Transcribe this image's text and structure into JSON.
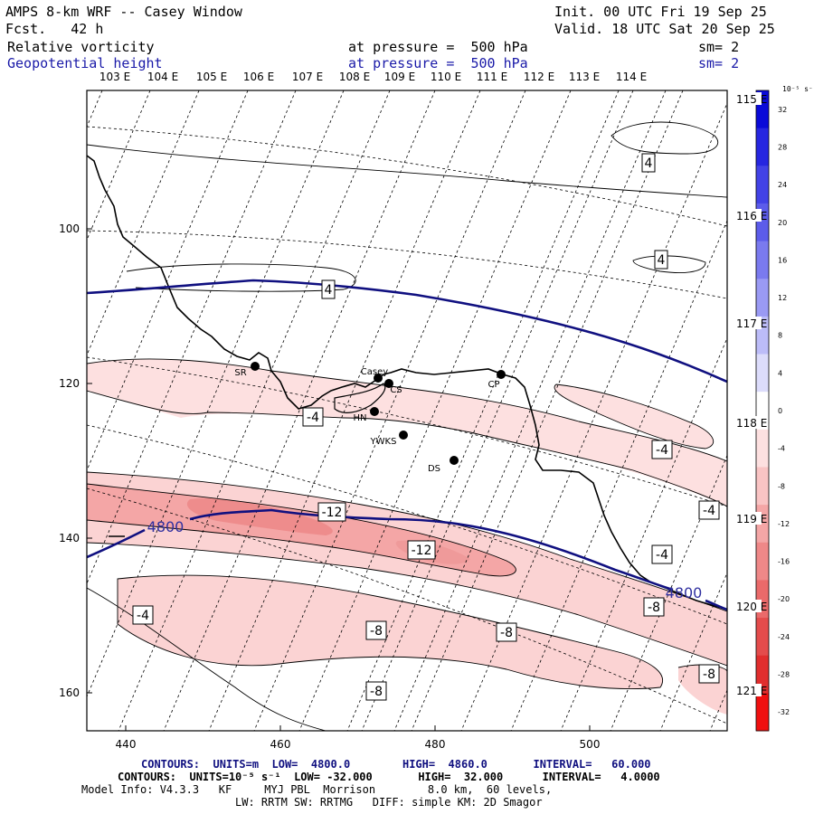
{
  "header": {
    "title": "AMPS 8-km WRF -- Casey Window",
    "init": "Init. 00 UTC Fri 19 Sep 25",
    "fcst": "Fcst.   42 h",
    "valid": "Valid. 18 UTC Sat 20 Sep 25",
    "field1": "Relative vorticity",
    "field1_level": "at pressure =  500 hPa",
    "field1_sm": "sm= 2",
    "field2": "Geopotential height",
    "field2_level": "at pressure =  500 hPa",
    "field2_sm": "sm= 2"
  },
  "map": {
    "lon_top": [
      "103 E",
      "104 E",
      "105 E",
      "106 E",
      "107 E",
      "108 E",
      "109 E",
      "110 E",
      "111 E",
      "112 E",
      "113 E",
      "114 E"
    ],
    "lon_right": [
      "115 E",
      "116 E",
      "117 E",
      "118 E",
      "119 E",
      "120 E",
      "121 E"
    ],
    "y_ticks": [
      "100",
      "120",
      "140",
      "160"
    ],
    "x_ticks": [
      "440",
      "460",
      "480",
      "500"
    ],
    "stations": [
      {
        "id": "SR",
        "label": "SR"
      },
      {
        "id": "Casey",
        "label": "Casey"
      },
      {
        "id": "CS",
        "label": "CS"
      },
      {
        "id": "CP",
        "label": "CP"
      },
      {
        "id": "HN",
        "label": "HN"
      },
      {
        "id": "YWKS",
        "label": "YWKS"
      },
      {
        "id": "DS",
        "label": "DS"
      }
    ],
    "contour_labels": [
      "4",
      "4",
      "4",
      "-4",
      "-4",
      "-4",
      "-4",
      "-12",
      "-12",
      "-4",
      "-8",
      "-8",
      "-8",
      "-8",
      "-8"
    ],
    "height_labels": [
      "4800",
      "4800"
    ]
  },
  "colorbar": {
    "units": "10⁻⁵ s⁻¹",
    "levels": [
      "32",
      "28",
      "24",
      "20",
      "16",
      "12",
      "8",
      "4",
      "0",
      "-4",
      "-8",
      "-12",
      "-16",
      "-20",
      "-24",
      "-28",
      "-32"
    ],
    "colors": [
      "#0a0ad8",
      "#2626e0",
      "#4242e6",
      "#5c5cea",
      "#7a7aef",
      "#9a9af4",
      "#bcbcf8",
      "#dcdcfb",
      "#ffffff",
      "#fde0e0",
      "#f9c4c4",
      "#f4a6a6",
      "#ef8888",
      "#ea6a6a",
      "#e44c4c",
      "#e12e2e",
      "#f01010"
    ]
  },
  "footer": {
    "line1": "CONTOURS:  UNITS=m  LOW=  4800.0        HIGH=  4860.0       INTERVAL=   60.000",
    "line2": "CONTOURS:  UNITS=10⁻⁵ s⁻¹  LOW= -32.000       HIGH=  32.000      INTERVAL=   4.0000",
    "line3": "Model Info: V4.3.3   KF     MYJ PBL  Morrison        8.0 km,  60 levels,",
    "line4": "LW: RRTM SW: RRTMG   DIFF: simple KM: 2D Smagor"
  }
}
